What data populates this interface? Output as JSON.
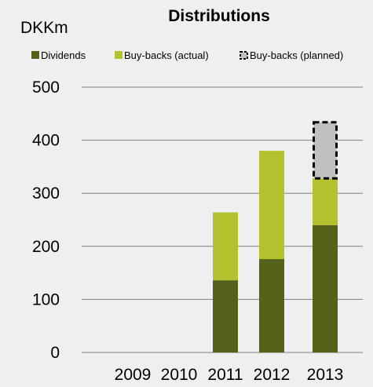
{
  "chart_data": {
    "type": "bar",
    "stacked": true,
    "title": "Distributions",
    "unit_label": "DKKm",
    "categories": [
      "2009",
      "2010",
      "2011",
      "2012",
      "2013"
    ],
    "series": [
      {
        "name": "Dividends",
        "color": "#56611a",
        "style": "solid",
        "values": [
          0,
          0,
          136,
          176,
          240
        ]
      },
      {
        "name": "Buy-backs (actual)",
        "color": "#b5c22f",
        "style": "solid",
        "values": [
          0,
          0,
          128,
          204,
          88
        ]
      },
      {
        "name": "Buy-backs (planned)",
        "color": "#c0c0c0",
        "style": "dashed",
        "values": [
          0,
          0,
          0,
          0,
          108
        ]
      }
    ],
    "y_ticks": [
      0,
      100,
      200,
      300,
      400,
      500
    ],
    "ylim": [
      0,
      500
    ],
    "grid": true,
    "legend_position": "top"
  }
}
